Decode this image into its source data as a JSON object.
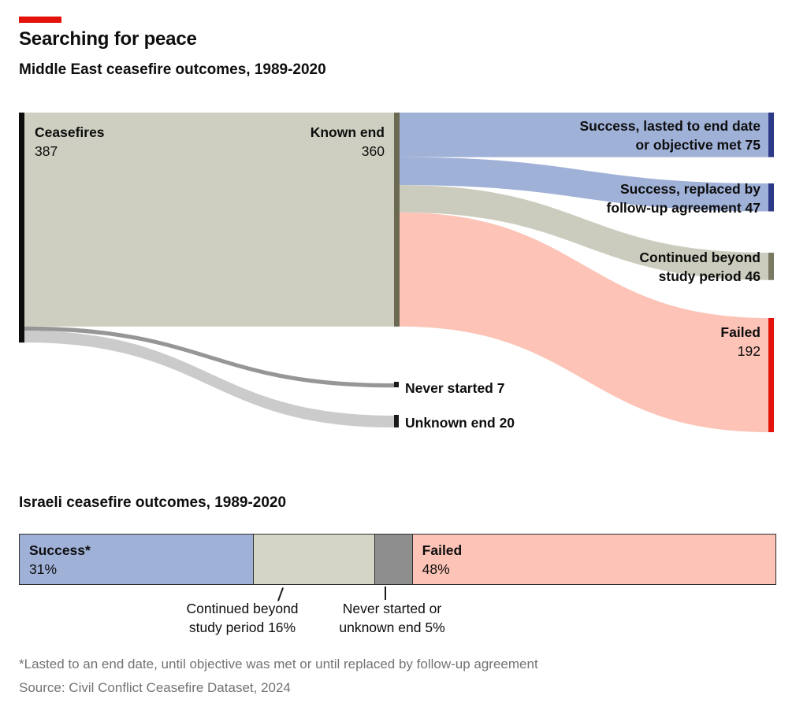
{
  "accent": {
    "red": "#e3120b"
  },
  "header": {
    "title": "Searching for peace",
    "subtitle": "Middle East ceasefire outcomes, 1989-2020"
  },
  "sankey": {
    "left_node": {
      "label": "Ceasefires",
      "value": "387"
    },
    "mid_node": {
      "label": "Known end",
      "value": "360"
    },
    "outcome_labels": [
      {
        "line1": "Success, lasted to end date",
        "line2": "or objective met 75"
      },
      {
        "line1": "Success, replaced by",
        "line2": "follow-up agreement 47"
      },
      {
        "line1": "Continued beyond",
        "line2": "study period 46"
      }
    ],
    "failed_label": "Failed",
    "failed_value": "192",
    "never_started_label": "Never started 7",
    "unknown_end_label": "Unknown end 20"
  },
  "israeli": {
    "title": "Israeli ceasefire outcomes, 1989-2020",
    "success_label": "Success*",
    "success_value": "31%",
    "failed_label": "Failed",
    "failed_value": "48%",
    "continued_line1": "Continued beyond",
    "continued_line2": "study period 16%",
    "never_line1": "Never started or",
    "never_line2": "unknown end 5%"
  },
  "footer": {
    "footnote": "*Lasted to an end date, until objective was met or until replaced by follow-up agreement",
    "source": "Source: Civil Conflict Ceasefire Dataset, 2024"
  },
  "chart_data": [
    {
      "type": "sankey",
      "title": "Middle East ceasefire outcomes, 1989-2020",
      "nodes": [
        {
          "id": "Ceasefires",
          "value": 387,
          "color": "#0d0d0d"
        },
        {
          "id": "Known end",
          "value": 360,
          "color": "#6b6952"
        },
        {
          "id": "Never started",
          "value": 7,
          "color": "#1a1a1a"
        },
        {
          "id": "Unknown end",
          "value": 20,
          "color": "#1a1a1a"
        },
        {
          "id": "Success, lasted to end date or objective met",
          "value": 75,
          "color": "#2c3a87"
        },
        {
          "id": "Success, replaced by follow-up agreement",
          "value": 47,
          "color": "#2c3a87"
        },
        {
          "id": "Continued beyond study period",
          "value": 46,
          "color": "#7a7963"
        },
        {
          "id": "Failed",
          "value": 192,
          "color": "#e3120b"
        }
      ],
      "links": [
        {
          "source": "Ceasefires",
          "target": "Known end",
          "value": 360,
          "color": "#cfcfc1"
        },
        {
          "source": "Ceasefires",
          "target": "Never started",
          "value": 7,
          "color": "#969696"
        },
        {
          "source": "Ceasefires",
          "target": "Unknown end",
          "value": 20,
          "color": "#cbcbcb"
        },
        {
          "source": "Known end",
          "target": "Success, lasted to end date or objective met",
          "value": 75,
          "color": "#a0b1d8"
        },
        {
          "source": "Known end",
          "target": "Success, replaced by follow-up agreement",
          "value": 47,
          "color": "#a0b1d8"
        },
        {
          "source": "Known end",
          "target": "Continued beyond study period",
          "value": 46,
          "color": "#ccccbe"
        },
        {
          "source": "Known end",
          "target": "Failed",
          "value": 192,
          "color": "#fcc3b6"
        }
      ]
    },
    {
      "type": "bar",
      "title": "Israeli ceasefire outcomes, 1989-2020",
      "categories": [
        "Success",
        "Continued beyond study period",
        "Never started or unknown end",
        "Failed"
      ],
      "values": [
        31,
        16,
        5,
        48
      ],
      "unit": "%",
      "colors": [
        "#a0b1d8",
        "#d5d5c6",
        "#8e8e8e",
        "#fcc3b6"
      ],
      "legend_position": "inline",
      "grid": false
    }
  ]
}
